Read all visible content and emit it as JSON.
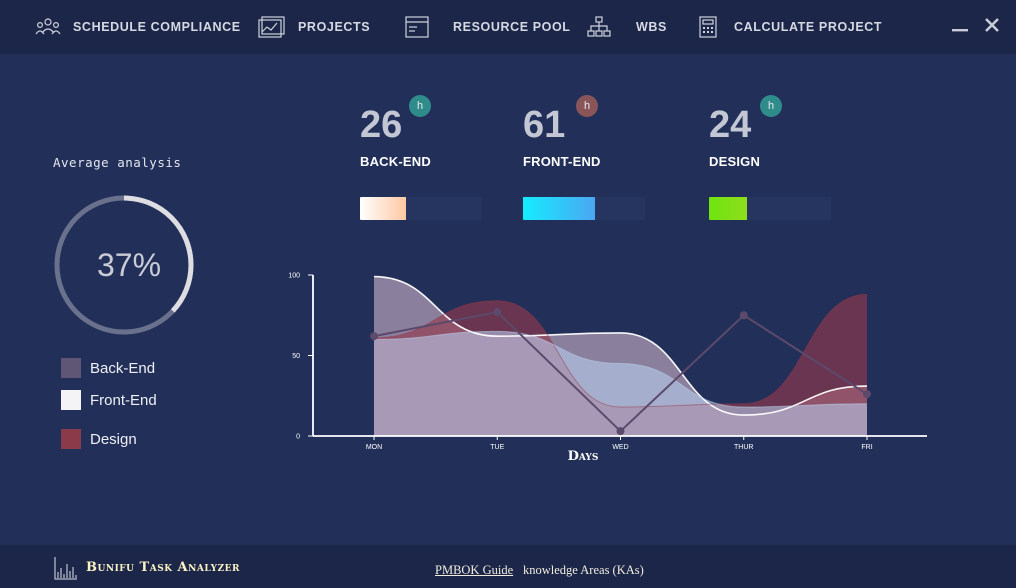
{
  "topnav": {
    "items": [
      {
        "label": "SCHEDULE COMPLIANCE",
        "icon": "people-group-icon"
      },
      {
        "label": "PROJECTS",
        "icon": "chart-document-icon"
      },
      {
        "label": "RESOURCE POOL",
        "icon": "window-form-icon"
      },
      {
        "label": "WBS",
        "icon": "hierarchy-icon"
      },
      {
        "label": "CALCULATE PROJECT",
        "icon": "calculator-icon"
      }
    ],
    "minimize_glyph": "—",
    "close_glyph": "✕"
  },
  "analysis": {
    "title": "Average analysis",
    "percent_label": "37%",
    "percent": 0.37,
    "legend": [
      {
        "label": "Back-End",
        "color": "#5f5575"
      },
      {
        "label": "Front-End",
        "color": "#f4f3f5"
      },
      {
        "label": "Design",
        "color": "#8b3a49"
      }
    ]
  },
  "stats": [
    {
      "value": "26",
      "badge": "h",
      "badge_color": "#2f8c8a",
      "label": "BACK-END",
      "progress": 0.38,
      "bar_from": "#ffffff",
      "bar_to": "#fdc8a3"
    },
    {
      "value": "61",
      "badge": "h",
      "badge_color": "#8a5559",
      "label": "FRONT-END",
      "progress": 0.59,
      "bar_from": "#15ecff",
      "bar_to": "#4aa7f2"
    },
    {
      "value": "24",
      "badge": "h",
      "badge_color": "#2f8c8a",
      "label": "DESIGN",
      "progress": 0.31,
      "bar_from": "#6fe40f",
      "bar_to": "#8edd1c"
    }
  ],
  "chart_data": {
    "type": "area",
    "categories": [
      "MON",
      "TUE",
      "WED",
      "THUR",
      "FRI"
    ],
    "xlabel": "Days",
    "ylabel": "",
    "ylim": [
      0,
      100
    ],
    "y_ticks": [
      "0",
      "50",
      "100"
    ],
    "grid": false,
    "series": [
      {
        "values": [
          99,
          62,
          64,
          13,
          31
        ],
        "kind": "area",
        "color": "#c9b0c7"
      },
      {
        "values": [
          61,
          84,
          18,
          20,
          88
        ],
        "kind": "area",
        "color": "#96384b"
      },
      {
        "values": [
          60,
          65,
          45,
          18,
          20
        ],
        "kind": "area",
        "color": "#bcd6f4"
      },
      {
        "values": [
          62,
          77,
          3,
          75,
          26
        ],
        "kind": "line",
        "color": "#5b4a6c"
      }
    ]
  },
  "footer": {
    "app_name": "Bunifu Task Analyzer",
    "link": "PMBOK Guide",
    "text": "knowledge Areas (KAs)"
  }
}
